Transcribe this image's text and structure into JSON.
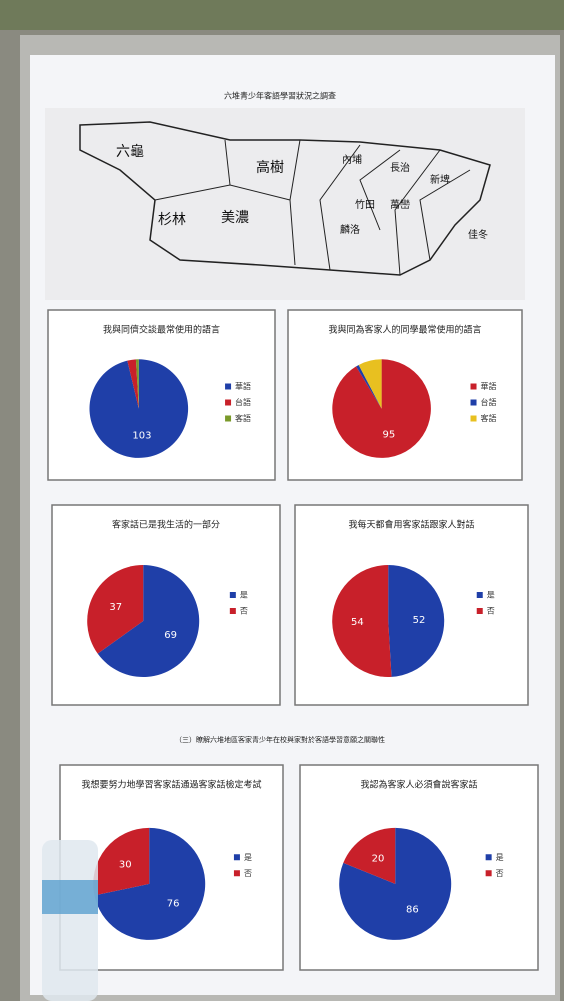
{
  "poster_title": "六堆青少年客語學習狀況之調查",
  "map": {
    "labels": [
      "六龜",
      "高樹",
      "杉林",
      "美濃",
      "內埔",
      "長治",
      "麟洛",
      "竹田",
      "萬巒",
      "新埤",
      "佳冬"
    ]
  },
  "section_heading": "（三）瞭解六堆地區客家青少年在校與家對於客語學習意願之關聯性",
  "chart_data": [
    {
      "type": "pie",
      "title": "我與同儕交談最常使用的語言",
      "categories": [
        "華語",
        "台語",
        "客語"
      ],
      "values": [
        103,
        3,
        1
      ],
      "colors": [
        "#1f3fa8",
        "#c8202a",
        "#7a9a2a"
      ]
    },
    {
      "type": "pie",
      "title": "我與同為客家人的同學最常使用的語言",
      "categories": [
        "華語",
        "台語",
        "客語"
      ],
      "values": [
        95,
        1,
        8
      ],
      "colors": [
        "#c8202a",
        "#1f3fa8",
        "#e8c020"
      ]
    },
    {
      "type": "pie",
      "title": "客家話已是我生活的一部分",
      "categories": [
        "是",
        "否"
      ],
      "values": [
        69,
        37
      ],
      "colors": [
        "#1f3fa8",
        "#c8202a"
      ]
    },
    {
      "type": "pie",
      "title": "我每天都會用客家話跟家人對話",
      "categories": [
        "是",
        "否"
      ],
      "values": [
        52,
        54
      ],
      "colors": [
        "#1f3fa8",
        "#c8202a"
      ]
    },
    {
      "type": "pie",
      "title": "我想要努力地學習客家話通過客家話檢定考試",
      "categories": [
        "是",
        "否"
      ],
      "values": [
        76,
        30
      ],
      "colors": [
        "#1f3fa8",
        "#c8202a"
      ]
    },
    {
      "type": "pie",
      "title": "我認為客家人必須會說客家話",
      "categories": [
        "是",
        "否"
      ],
      "values": [
        86,
        20
      ],
      "colors": [
        "#1f3fa8",
        "#c8202a"
      ]
    }
  ]
}
